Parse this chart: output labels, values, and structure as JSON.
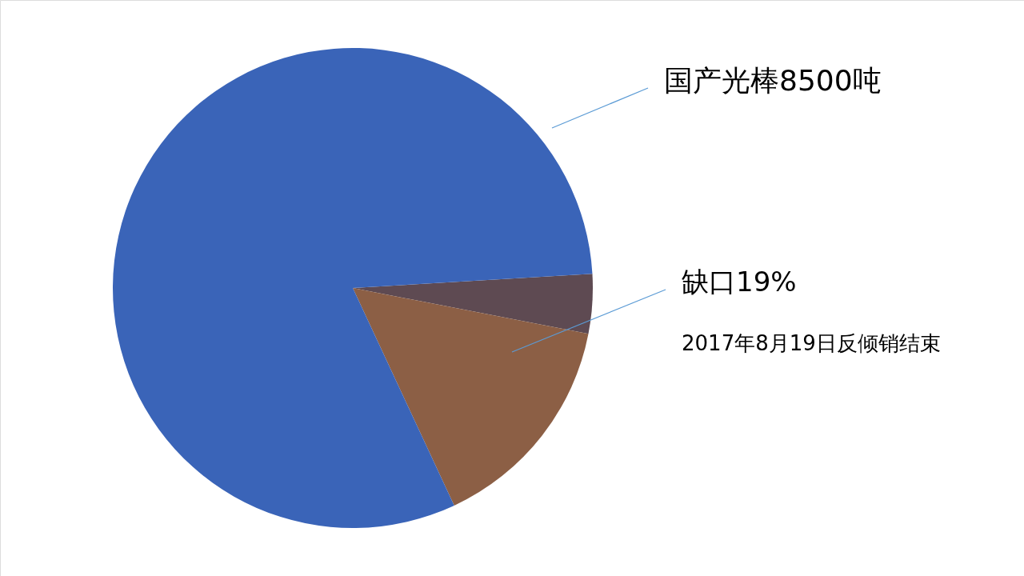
{
  "chart_data": {
    "type": "pie",
    "categories": [
      "国产光棒8500吨",
      null,
      "缺口19%"
    ],
    "values": [
      81,
      4,
      15
    ],
    "colors": [
      "#3a64b8",
      "#5e4a52",
      "#8c5f45"
    ],
    "annotations": [
      "2017年8月19日反倾销结束"
    ]
  }
}
